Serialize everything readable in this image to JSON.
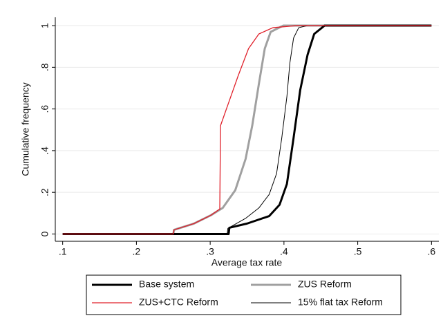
{
  "chart_data": {
    "type": "line",
    "x_label": "Average tax rate",
    "y_label": "Cumulative frequency",
    "xlim": [
      0.09,
      0.61
    ],
    "ylim": [
      -0.035,
      1.04
    ],
    "xticks": [
      {
        "value": 0.1,
        "label": ".1"
      },
      {
        "value": 0.2,
        "label": ".2"
      },
      {
        "value": 0.3,
        "label": ".3"
      },
      {
        "value": 0.4,
        "label": ".4"
      },
      {
        "value": 0.5,
        "label": ".5"
      },
      {
        "value": 0.6,
        "label": ".6"
      }
    ],
    "yticks": [
      0,
      {
        "value": 0.2,
        "label": ".2"
      },
      {
        "value": 0.4,
        "label": ".4"
      },
      {
        "value": 0.6,
        "label": ".6"
      },
      {
        "value": 0.8,
        "label": ".8"
      },
      1
    ],
    "grid": true,
    "legend": "bottom",
    "series": [
      {
        "name": "Base system",
        "color": "#000000",
        "width": 3,
        "x": [
          0.1,
          0.325,
          0.326,
          0.35,
          0.38,
          0.394,
          0.404,
          0.413,
          0.422,
          0.432,
          0.441,
          0.455,
          0.6
        ],
        "values": [
          0,
          0,
          0.03,
          0.05,
          0.086,
          0.14,
          0.24,
          0.46,
          0.69,
          0.86,
          0.96,
          1,
          1
        ]
      },
      {
        "name": "ZUS Reform",
        "color": "#a0a0a0",
        "width": 3,
        "x": [
          0.1,
          0.25,
          0.251,
          0.278,
          0.301,
          0.317,
          0.334,
          0.348,
          0.357,
          0.366,
          0.374,
          0.382,
          0.399,
          0.6
        ],
        "values": [
          0,
          0,
          0.02,
          0.05,
          0.09,
          0.125,
          0.21,
          0.36,
          0.52,
          0.72,
          0.89,
          0.97,
          1,
          1
        ]
      },
      {
        "name": "ZUS+CTC Reform",
        "color": "#e0202a",
        "width": 1.3,
        "x": [
          0.1,
          0.25,
          0.251,
          0.278,
          0.301,
          0.313,
          0.314,
          0.324,
          0.338,
          0.352,
          0.366,
          0.385,
          0.417,
          0.6
        ],
        "values": [
          0,
          0,
          0.02,
          0.05,
          0.09,
          0.12,
          0.52,
          0.62,
          0.76,
          0.89,
          0.96,
          0.99,
          1,
          1
        ]
      },
      {
        "name": "15% flat tax Reform",
        "color": "#000000",
        "width": 1,
        "x": [
          0.1,
          0.323,
          0.324,
          0.348,
          0.366,
          0.38,
          0.39,
          0.397,
          0.404,
          0.408,
          0.413,
          0.42,
          0.432,
          0.6
        ],
        "values": [
          0,
          0,
          0.027,
          0.075,
          0.125,
          0.19,
          0.29,
          0.46,
          0.66,
          0.82,
          0.94,
          0.99,
          1,
          1
        ]
      }
    ]
  }
}
